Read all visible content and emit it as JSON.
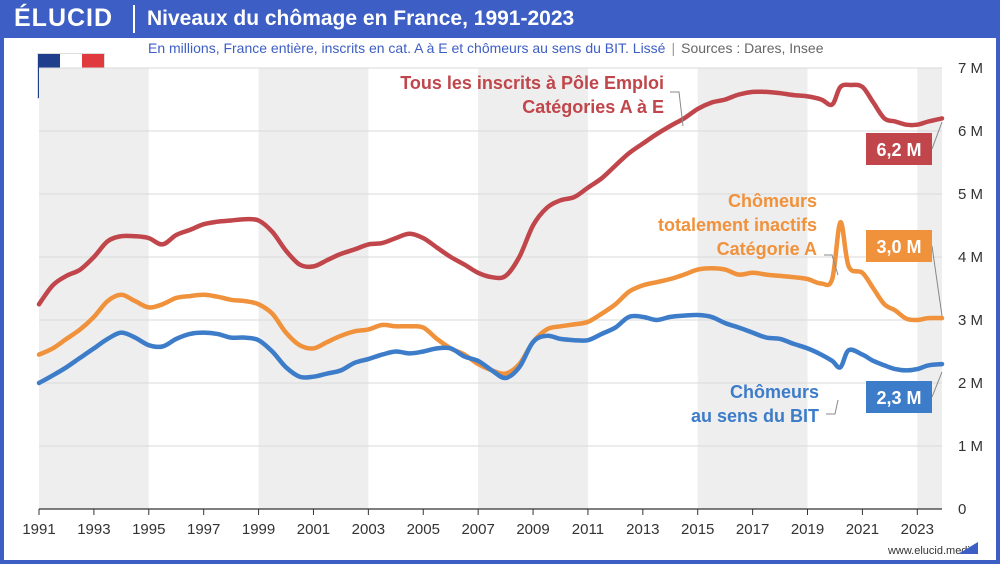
{
  "header": {
    "brand": "ÉLUCID",
    "title": "Niveaux du chômage en France, 1991-2023",
    "subtitle": "En millions, France entière, inscrits en cat. A à E et chômeurs au sens du BIT. Lissé",
    "subtitle_separator": "|",
    "sources": "Sources : Dares, Insee"
  },
  "footer": {
    "website": "www.elucid.media"
  },
  "flag": {
    "colors": [
      "#1f3f8c",
      "#ffffff",
      "#e03a3e"
    ]
  },
  "colors": {
    "brand": "#3d5ec4",
    "red": "#c0464b",
    "orange": "#f0913b",
    "blue": "#3d7cc9",
    "band": "#eeeeee",
    "grid": "#d9d9d9"
  },
  "chart_data": {
    "type": "line",
    "title": "Niveaux du chômage en France, 1991-2023",
    "xlabel": "",
    "ylabel": "",
    "xlim": [
      1991,
      2023.9
    ],
    "ylim": [
      0,
      7
    ],
    "x_ticks": [
      1991,
      1993,
      1995,
      1997,
      1999,
      2001,
      2003,
      2005,
      2007,
      2009,
      2011,
      2013,
      2015,
      2017,
      2019,
      2021,
      2023
    ],
    "y_ticks": [
      {
        "value": 0,
        "label": "0"
      },
      {
        "value": 1,
        "label": "1 M"
      },
      {
        "value": 2,
        "label": "2 M"
      },
      {
        "value": 3,
        "label": "3 M"
      },
      {
        "value": 4,
        "label": "4 M"
      },
      {
        "value": 5,
        "label": "5 M"
      },
      {
        "value": 6,
        "label": "6 M"
      },
      {
        "value": 7,
        "label": "7 M"
      }
    ],
    "shaded_bands": [
      [
        1991,
        1995
      ],
      [
        1999,
        2003
      ],
      [
        2007,
        2011
      ],
      [
        2015,
        2019
      ],
      [
        2023,
        2023.9
      ]
    ],
    "series": [
      {
        "name": "Tous les inscrits à Pôle Emploi Catégories A à E",
        "label_lines": [
          "Tous les inscrits à Pôle Emploi",
          "Catégories A à E"
        ],
        "color_key": "red",
        "end_label": "6,2 M",
        "points": [
          [
            1991,
            3.25
          ],
          [
            1991.5,
            3.55
          ],
          [
            1992,
            3.7
          ],
          [
            1992.5,
            3.8
          ],
          [
            1993,
            4.0
          ],
          [
            1993.5,
            4.25
          ],
          [
            1994,
            4.33
          ],
          [
            1994.5,
            4.33
          ],
          [
            1995,
            4.3
          ],
          [
            1995.5,
            4.2
          ],
          [
            1996,
            4.35
          ],
          [
            1996.5,
            4.43
          ],
          [
            1997,
            4.52
          ],
          [
            1997.5,
            4.56
          ],
          [
            1998,
            4.58
          ],
          [
            1998.5,
            4.6
          ],
          [
            1999,
            4.58
          ],
          [
            1999.5,
            4.4
          ],
          [
            2000,
            4.1
          ],
          [
            2000.5,
            3.88
          ],
          [
            2001,
            3.85
          ],
          [
            2001.5,
            3.95
          ],
          [
            2002,
            4.05
          ],
          [
            2002.5,
            4.12
          ],
          [
            2003,
            4.2
          ],
          [
            2003.5,
            4.22
          ],
          [
            2004,
            4.3
          ],
          [
            2004.5,
            4.37
          ],
          [
            2005,
            4.3
          ],
          [
            2005.5,
            4.15
          ],
          [
            2006,
            4.0
          ],
          [
            2006.5,
            3.88
          ],
          [
            2007,
            3.75
          ],
          [
            2007.5,
            3.68
          ],
          [
            2008,
            3.7
          ],
          [
            2008.5,
            4.0
          ],
          [
            2009,
            4.5
          ],
          [
            2009.5,
            4.78
          ],
          [
            2010,
            4.9
          ],
          [
            2010.5,
            4.95
          ],
          [
            2011,
            5.1
          ],
          [
            2011.5,
            5.25
          ],
          [
            2012,
            5.45
          ],
          [
            2012.5,
            5.65
          ],
          [
            2013,
            5.8
          ],
          [
            2013.5,
            5.95
          ],
          [
            2014,
            6.08
          ],
          [
            2014.5,
            6.2
          ],
          [
            2015,
            6.35
          ],
          [
            2015.5,
            6.45
          ],
          [
            2016,
            6.5
          ],
          [
            2016.5,
            6.58
          ],
          [
            2017,
            6.62
          ],
          [
            2017.5,
            6.62
          ],
          [
            2018,
            6.6
          ],
          [
            2018.5,
            6.57
          ],
          [
            2019,
            6.55
          ],
          [
            2019.5,
            6.5
          ],
          [
            2019.9,
            6.42
          ],
          [
            2020.2,
            6.7
          ],
          [
            2020.6,
            6.73
          ],
          [
            2021,
            6.7
          ],
          [
            2021.4,
            6.45
          ],
          [
            2021.8,
            6.2
          ],
          [
            2022.2,
            6.15
          ],
          [
            2022.6,
            6.1
          ],
          [
            2023,
            6.1
          ],
          [
            2023.4,
            6.15
          ],
          [
            2023.9,
            6.2
          ]
        ]
      },
      {
        "name": "Chômeurs totalement inactifs Catégorie A",
        "label_lines": [
          "Chômeurs",
          "totalement inactifs",
          "Catégorie A"
        ],
        "color_key": "orange",
        "end_label": "3,0 M",
        "points": [
          [
            1991,
            2.45
          ],
          [
            1991.5,
            2.55
          ],
          [
            1992,
            2.7
          ],
          [
            1992.5,
            2.85
          ],
          [
            1993,
            3.05
          ],
          [
            1993.5,
            3.3
          ],
          [
            1994,
            3.4
          ],
          [
            1994.5,
            3.3
          ],
          [
            1995,
            3.2
          ],
          [
            1995.5,
            3.25
          ],
          [
            1996,
            3.35
          ],
          [
            1996.5,
            3.38
          ],
          [
            1997,
            3.4
          ],
          [
            1997.5,
            3.37
          ],
          [
            1998,
            3.32
          ],
          [
            1998.5,
            3.3
          ],
          [
            1999,
            3.25
          ],
          [
            1999.5,
            3.1
          ],
          [
            2000,
            2.8
          ],
          [
            2000.5,
            2.6
          ],
          [
            2001,
            2.55
          ],
          [
            2001.5,
            2.65
          ],
          [
            2002,
            2.75
          ],
          [
            2002.5,
            2.82
          ],
          [
            2003,
            2.85
          ],
          [
            2003.5,
            2.92
          ],
          [
            2004,
            2.9
          ],
          [
            2004.5,
            2.9
          ],
          [
            2005,
            2.88
          ],
          [
            2005.5,
            2.7
          ],
          [
            2006,
            2.55
          ],
          [
            2006.5,
            2.45
          ],
          [
            2007,
            2.3
          ],
          [
            2007.5,
            2.2
          ],
          [
            2008,
            2.15
          ],
          [
            2008.5,
            2.3
          ],
          [
            2009,
            2.65
          ],
          [
            2009.5,
            2.85
          ],
          [
            2010,
            2.9
          ],
          [
            2010.5,
            2.93
          ],
          [
            2011,
            2.97
          ],
          [
            2011.5,
            3.1
          ],
          [
            2012,
            3.25
          ],
          [
            2012.5,
            3.45
          ],
          [
            2013,
            3.55
          ],
          [
            2013.5,
            3.6
          ],
          [
            2014,
            3.65
          ],
          [
            2014.5,
            3.72
          ],
          [
            2015,
            3.8
          ],
          [
            2015.5,
            3.82
          ],
          [
            2016,
            3.8
          ],
          [
            2016.5,
            3.72
          ],
          [
            2017,
            3.75
          ],
          [
            2017.5,
            3.72
          ],
          [
            2018,
            3.7
          ],
          [
            2018.5,
            3.68
          ],
          [
            2019,
            3.65
          ],
          [
            2019.5,
            3.58
          ],
          [
            2019.9,
            3.65
          ],
          [
            2020.2,
            4.55
          ],
          [
            2020.5,
            3.85
          ],
          [
            2021,
            3.75
          ],
          [
            2021.4,
            3.5
          ],
          [
            2021.8,
            3.25
          ],
          [
            2022.2,
            3.15
          ],
          [
            2022.6,
            3.02
          ],
          [
            2023,
            3.0
          ],
          [
            2023.4,
            3.03
          ],
          [
            2023.9,
            3.03
          ]
        ]
      },
      {
        "name": "Chômeurs au sens du BIT",
        "label_lines": [
          "Chômeurs",
          "au sens du BIT"
        ],
        "color_key": "blue",
        "end_label": "2,3 M",
        "points": [
          [
            1991,
            2.0
          ],
          [
            1991.5,
            2.12
          ],
          [
            1992,
            2.25
          ],
          [
            1992.5,
            2.4
          ],
          [
            1993,
            2.55
          ],
          [
            1993.5,
            2.7
          ],
          [
            1994,
            2.8
          ],
          [
            1994.5,
            2.72
          ],
          [
            1995,
            2.6
          ],
          [
            1995.5,
            2.58
          ],
          [
            1996,
            2.7
          ],
          [
            1996.5,
            2.78
          ],
          [
            1997,
            2.8
          ],
          [
            1997.5,
            2.78
          ],
          [
            1998,
            2.72
          ],
          [
            1998.5,
            2.72
          ],
          [
            1999,
            2.68
          ],
          [
            1999.5,
            2.5
          ],
          [
            2000,
            2.25
          ],
          [
            2000.5,
            2.1
          ],
          [
            2001,
            2.1
          ],
          [
            2001.5,
            2.15
          ],
          [
            2002,
            2.2
          ],
          [
            2002.5,
            2.32
          ],
          [
            2003,
            2.38
          ],
          [
            2003.5,
            2.45
          ],
          [
            2004,
            2.5
          ],
          [
            2004.5,
            2.47
          ],
          [
            2005,
            2.5
          ],
          [
            2005.5,
            2.55
          ],
          [
            2006,
            2.55
          ],
          [
            2006.5,
            2.42
          ],
          [
            2007,
            2.35
          ],
          [
            2007.5,
            2.2
          ],
          [
            2008,
            2.08
          ],
          [
            2008.5,
            2.25
          ],
          [
            2009,
            2.65
          ],
          [
            2009.5,
            2.75
          ],
          [
            2010,
            2.7
          ],
          [
            2010.5,
            2.68
          ],
          [
            2011,
            2.68
          ],
          [
            2011.5,
            2.78
          ],
          [
            2012,
            2.88
          ],
          [
            2012.5,
            3.05
          ],
          [
            2013,
            3.05
          ],
          [
            2013.5,
            3.0
          ],
          [
            2014,
            3.05
          ],
          [
            2014.5,
            3.07
          ],
          [
            2015,
            3.08
          ],
          [
            2015.5,
            3.05
          ],
          [
            2016,
            2.95
          ],
          [
            2016.5,
            2.88
          ],
          [
            2017,
            2.8
          ],
          [
            2017.5,
            2.72
          ],
          [
            2018,
            2.7
          ],
          [
            2018.5,
            2.62
          ],
          [
            2019,
            2.55
          ],
          [
            2019.5,
            2.45
          ],
          [
            2019.9,
            2.35
          ],
          [
            2020.2,
            2.25
          ],
          [
            2020.5,
            2.52
          ],
          [
            2021,
            2.45
          ],
          [
            2021.4,
            2.35
          ],
          [
            2021.8,
            2.28
          ],
          [
            2022.2,
            2.22
          ],
          [
            2022.6,
            2.2
          ],
          [
            2023,
            2.22
          ],
          [
            2023.4,
            2.28
          ],
          [
            2023.9,
            2.3
          ]
        ]
      }
    ]
  }
}
